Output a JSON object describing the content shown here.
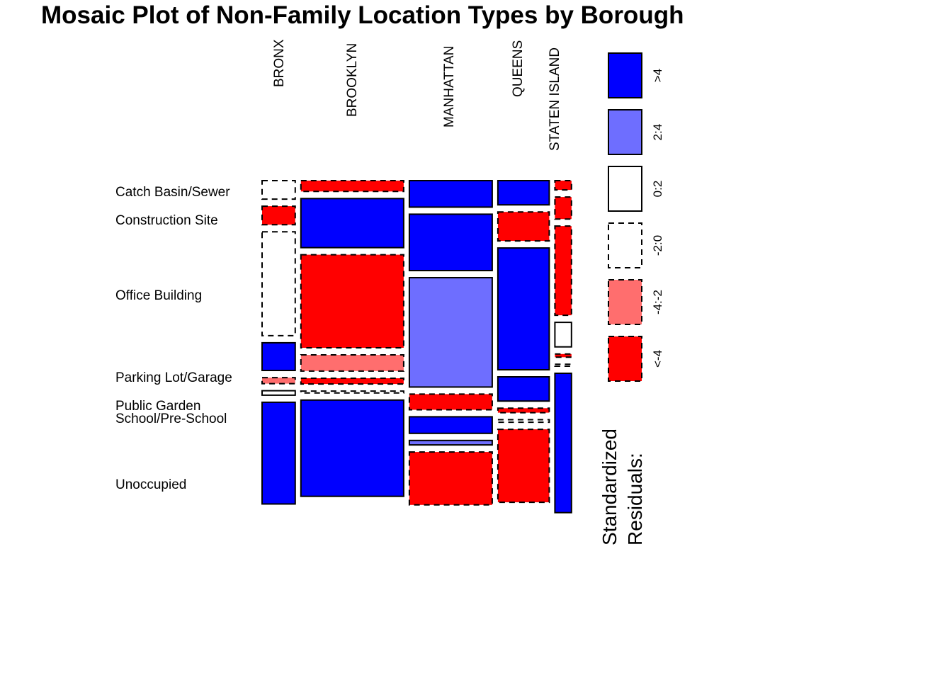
{
  "chart_data": {
    "type": "mosaic",
    "title": "Mosaic Plot of Non-Family Location Types by Borough",
    "x_categories": [
      "BRONX",
      "BROOKLYN",
      "MANHATTAN",
      "QUEENS",
      "STATEN ISLAND"
    ],
    "y_categories": [
      "Catch Basin/Sewer",
      "Construction Site",
      "Office Building",
      "Parking Lot/Garage",
      "Public Garden",
      "School/Pre-School",
      "Unoccupied"
    ],
    "x_label_values": [
      "BRONX",
      "BROOKLYN",
      "MANHATTAN",
      "QUEENS",
      "STATEN ISLAND"
    ],
    "column_shares": [
      0.1,
      0.31,
      0.25,
      0.155,
      0.05
    ],
    "cell_proportions": [
      [
        0.058,
        0.058,
        0.326,
        0.087,
        0.019,
        0.014,
        0.319
      ],
      [
        0.034,
        0.154,
        0.292,
        0.051,
        0.018,
        0.006,
        0.302
      ],
      [
        0.083,
        0.177,
        0.343,
        0.049,
        0.052,
        0.014,
        0.166
      ],
      [
        0.076,
        0.091,
        0.382,
        0.076,
        0.014,
        0.008,
        0.229
      ],
      [
        0.029,
        0.069,
        0.28,
        0.077,
        0.01,
        0.006,
        0.437
      ]
    ],
    "residual_classes": [
      [
        "-2:0",
        "<-4",
        "-2:0",
        ">4",
        "-4:-2",
        "0:2",
        ">4"
      ],
      [
        "<-4",
        ">4",
        "<-4",
        "-4:-2",
        "<-4",
        "-2:0",
        ">4"
      ],
      [
        ">4",
        ">4",
        "2:4",
        "<-4",
        ">4",
        "2:4",
        "<-4"
      ],
      [
        ">4",
        "<-4",
        ">4",
        ">4",
        "<-4",
        "-2:0",
        "<-4"
      ],
      [
        "<-4",
        "<-4",
        "<-4",
        "0:2",
        "<-4",
        "-2:0",
        ">4"
      ]
    ],
    "legend": {
      "title": [
        "Standardized",
        "Residuals:"
      ],
      "placement": "right",
      "items": [
        {
          "label": ">4",
          "fill": "#0000FF",
          "dashed": false
        },
        {
          "label": "2:4",
          "fill": "#6E6EFF",
          "dashed": false
        },
        {
          "label": "0:2",
          "fill": "#FFFFFF",
          "dashed": false
        },
        {
          "label": "-2:0",
          "fill": "#FFFFFF",
          "dashed": true
        },
        {
          "label": "-4:-2",
          "fill": "#FF6E6E",
          "dashed": true
        },
        {
          "label": "<-4",
          "fill": "#FF0000",
          "dashed": true
        }
      ]
    }
  }
}
